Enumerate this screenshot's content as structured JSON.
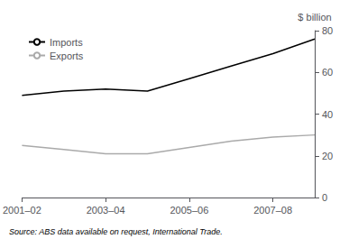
{
  "chart_data": {
    "type": "line",
    "x": [
      2001,
      2002,
      2003,
      2004,
      2005,
      2006,
      2007,
      2008
    ],
    "xlim": [
      2001,
      2008
    ],
    "xticks": [
      {
        "value": 2001,
        "label": "2001–02"
      },
      {
        "value": 2003,
        "label": "2003–04"
      },
      {
        "value": 2005,
        "label": "2005–06"
      },
      {
        "value": 2007,
        "label": "2007–08"
      }
    ],
    "ylim": [
      0,
      80
    ],
    "yticks": [
      0,
      20,
      40,
      60,
      80
    ],
    "ylabel": "$ billion",
    "series": [
      {
        "name": "Imports",
        "color": "#000000",
        "values": [
          49,
          51,
          52,
          51,
          57,
          63,
          69,
          76
        ]
      },
      {
        "name": "Exports",
        "color": "#aaaaaa",
        "values": [
          25,
          23,
          21,
          21,
          24,
          27,
          29,
          30
        ]
      }
    ],
    "annotations": [
      "Source: ABS data available on request, International Trade."
    ],
    "legend": "upper left",
    "grid": false
  }
}
